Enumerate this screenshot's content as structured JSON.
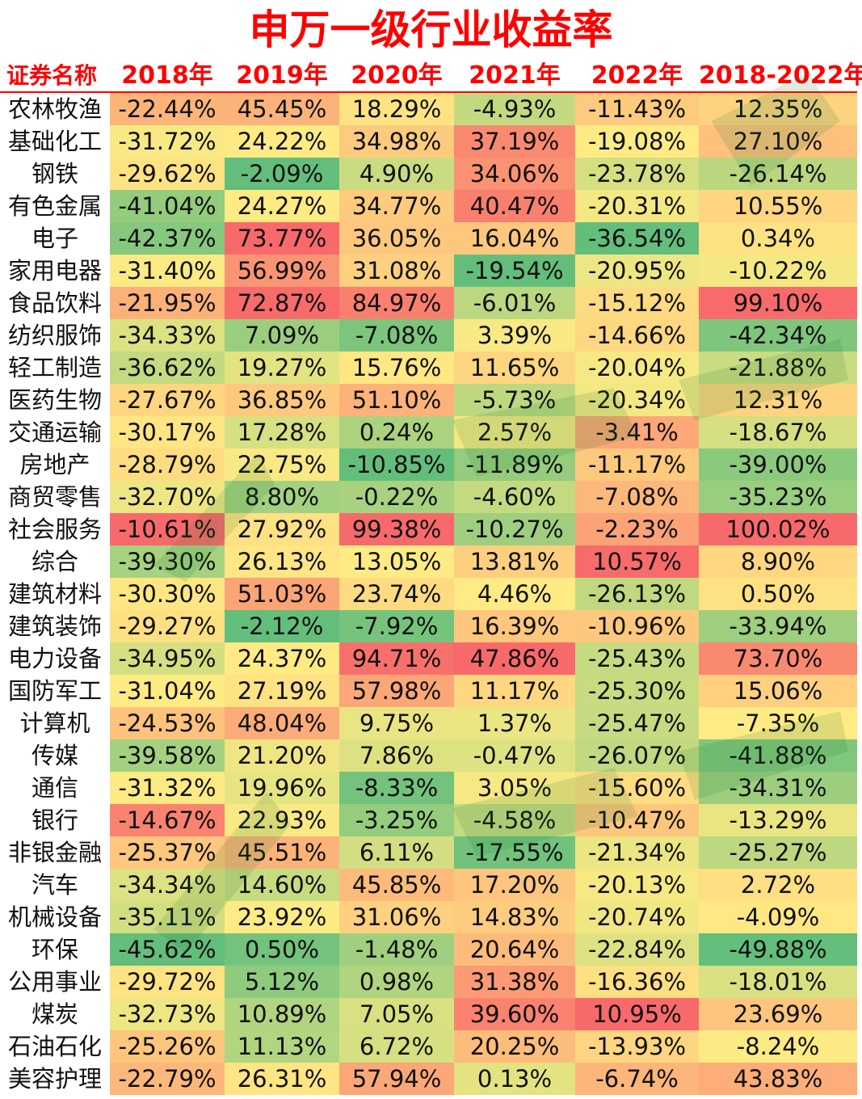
{
  "chart_data": {
    "type": "table",
    "title": "申万一级行业收益率",
    "columns": [
      "证券名称",
      "2018年",
      "2019年",
      "2020年",
      "2021年",
      "2022年",
      "2018-2022年"
    ],
    "rows": [
      {
        "name": "农林牧渔",
        "values": [
          "-22.44%",
          "45.45%",
          "18.29%",
          "-4.93%",
          "-11.43%",
          "12.35%"
        ]
      },
      {
        "name": "基础化工",
        "values": [
          "-31.72%",
          "24.22%",
          "34.98%",
          "37.19%",
          "-19.08%",
          "27.10%"
        ]
      },
      {
        "name": "钢铁",
        "values": [
          "-29.62%",
          "-2.09%",
          "4.90%",
          "34.06%",
          "-23.78%",
          "-26.14%"
        ]
      },
      {
        "name": "有色金属",
        "values": [
          "-41.04%",
          "24.27%",
          "34.77%",
          "40.47%",
          "-20.31%",
          "10.55%"
        ]
      },
      {
        "name": "电子",
        "values": [
          "-42.37%",
          "73.77%",
          "36.05%",
          "16.04%",
          "-36.54%",
          "0.34%"
        ]
      },
      {
        "name": "家用电器",
        "values": [
          "-31.40%",
          "56.99%",
          "31.08%",
          "-19.54%",
          "-20.95%",
          "-10.22%"
        ]
      },
      {
        "name": "食品饮料",
        "values": [
          "-21.95%",
          "72.87%",
          "84.97%",
          "-6.01%",
          "-15.12%",
          "99.10%"
        ]
      },
      {
        "name": "纺织服饰",
        "values": [
          "-34.33%",
          "7.09%",
          "-7.08%",
          "3.39%",
          "-14.66%",
          "-42.34%"
        ]
      },
      {
        "name": "轻工制造",
        "values": [
          "-36.62%",
          "19.27%",
          "15.76%",
          "11.65%",
          "-20.04%",
          "-21.88%"
        ]
      },
      {
        "name": "医药生物",
        "values": [
          "-27.67%",
          "36.85%",
          "51.10%",
          "-5.73%",
          "-20.34%",
          "12.31%"
        ]
      },
      {
        "name": "交通运输",
        "values": [
          "-30.17%",
          "17.28%",
          "0.24%",
          "2.57%",
          "-3.41%",
          "-18.67%"
        ]
      },
      {
        "name": "房地产",
        "values": [
          "-28.79%",
          "22.75%",
          "-10.85%",
          "-11.89%",
          "-11.17%",
          "-39.00%"
        ]
      },
      {
        "name": "商贸零售",
        "values": [
          "-32.70%",
          "8.80%",
          "-0.22%",
          "-4.60%",
          "-7.08%",
          "-35.23%"
        ]
      },
      {
        "name": "社会服务",
        "values": [
          "-10.61%",
          "27.92%",
          "99.38%",
          "-10.27%",
          "-2.23%",
          "100.02%"
        ]
      },
      {
        "name": "综合",
        "values": [
          "-39.30%",
          "26.13%",
          "13.05%",
          "13.81%",
          "10.57%",
          "8.90%"
        ]
      },
      {
        "name": "建筑材料",
        "values": [
          "-30.30%",
          "51.03%",
          "23.74%",
          "4.46%",
          "-26.13%",
          "0.50%"
        ]
      },
      {
        "name": "建筑装饰",
        "values": [
          "-29.27%",
          "-2.12%",
          "-7.92%",
          "16.39%",
          "-10.96%",
          "-33.94%"
        ]
      },
      {
        "name": "电力设备",
        "values": [
          "-34.95%",
          "24.37%",
          "94.71%",
          "47.86%",
          "-25.43%",
          "73.70%"
        ]
      },
      {
        "name": "国防军工",
        "values": [
          "-31.04%",
          "27.19%",
          "57.98%",
          "11.17%",
          "-25.30%",
          "15.06%"
        ]
      },
      {
        "name": "计算机",
        "values": [
          "-24.53%",
          "48.04%",
          "9.75%",
          "1.37%",
          "-25.47%",
          "-7.35%"
        ]
      },
      {
        "name": "传媒",
        "values": [
          "-39.58%",
          "21.20%",
          "7.86%",
          "-0.47%",
          "-26.07%",
          "-41.88%"
        ]
      },
      {
        "name": "通信",
        "values": [
          "-31.32%",
          "19.96%",
          "-8.33%",
          "3.05%",
          "-15.60%",
          "-34.31%"
        ]
      },
      {
        "name": "银行",
        "values": [
          "-14.67%",
          "22.93%",
          "-3.25%",
          "-4.58%",
          "-10.47%",
          "-13.29%"
        ]
      },
      {
        "name": "非银金融",
        "values": [
          "-25.37%",
          "45.51%",
          "6.11%",
          "-17.55%",
          "-21.34%",
          "-25.27%"
        ]
      },
      {
        "name": "汽车",
        "values": [
          "-34.34%",
          "14.60%",
          "45.85%",
          "17.20%",
          "-20.13%",
          "2.72%"
        ]
      },
      {
        "name": "机械设备",
        "values": [
          "-35.11%",
          "23.92%",
          "31.06%",
          "14.83%",
          "-20.74%",
          "-4.09%"
        ]
      },
      {
        "name": "环保",
        "values": [
          "-45.62%",
          "0.50%",
          "-1.48%",
          "20.64%",
          "-22.84%",
          "-49.88%"
        ]
      },
      {
        "name": "公用事业",
        "values": [
          "-29.72%",
          "5.12%",
          "0.98%",
          "31.38%",
          "-16.36%",
          "-18.01%"
        ]
      },
      {
        "name": "煤炭",
        "values": [
          "-32.73%",
          "10.89%",
          "7.05%",
          "39.60%",
          "10.95%",
          "23.69%"
        ]
      },
      {
        "name": "石油石化",
        "values": [
          "-25.26%",
          "11.13%",
          "6.72%",
          "20.25%",
          "-13.93%",
          "-8.24%"
        ]
      },
      {
        "name": "美容护理",
        "values": [
          "-22.79%",
          "26.31%",
          "57.94%",
          "0.13%",
          "-6.74%",
          "43.83%"
        ]
      }
    ],
    "color_scale": {
      "low": "#63be7b",
      "mid": "#ffeb84",
      "high": "#f8696b"
    }
  }
}
